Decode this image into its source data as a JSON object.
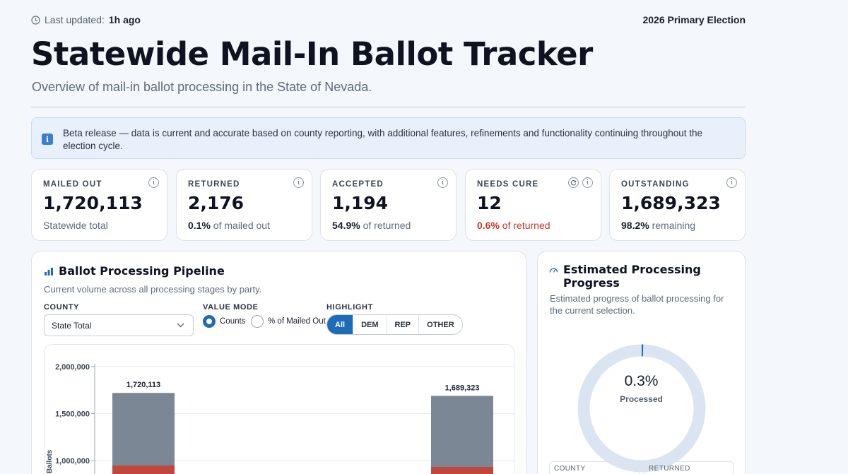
{
  "header": {
    "updated_label": "Last updated:",
    "updated_value": "1h ago",
    "election": "2026 Primary Election",
    "title": "Statewide Mail-In Ballot Tracker",
    "subtitle": "Overview of mail-in ballot processing in the State of Nevada."
  },
  "notice": {
    "icon": "info-icon",
    "text": "Beta release — data is current and accurate based on county reporting, with additional features, refinements and functionality continuing throughout the election cycle."
  },
  "stats": [
    {
      "label": "MAILED OUT",
      "value": "1,720,113",
      "sub_strong": "",
      "sub_text": "Statewide total"
    },
    {
      "label": "RETURNED",
      "value": "2,176",
      "sub_strong": "0.1%",
      "sub_text": " of mailed out"
    },
    {
      "label": "ACCEPTED",
      "value": "1,194",
      "sub_strong": "54.9%",
      "sub_text": " of returned"
    },
    {
      "label": "NEEDS CURE",
      "value": "12",
      "sub_strong": "0.6%",
      "sub_text": " of returned"
    },
    {
      "label": "OUTSTANDING",
      "value": "1,689,323",
      "sub_strong": "98.2%",
      "sub_text": " remaining"
    }
  ],
  "pipeline": {
    "title": "Ballot Processing Pipeline",
    "description": "Current volume across all processing stages by party.",
    "county_label": "COUNTY",
    "county_value": "State Total",
    "value_mode_label": "VALUE MODE",
    "mode_counts": "Counts",
    "mode_pct": "% of Mailed Out",
    "highlight_label": "HIGHLIGHT",
    "highlight_options": [
      "All",
      "DEM",
      "REP",
      "OTHER"
    ],
    "highlight_selected": "All"
  },
  "chart_data": {
    "type": "bar",
    "ylabel": "Ballots",
    "ylim": [
      500000,
      2000000
    ],
    "yticks": [
      "2,000,000",
      "1,500,000",
      "1,000,000"
    ],
    "bars": [
      {
        "value": 1720113,
        "label": "1,720,113"
      },
      {
        "value": 1689323,
        "label": "1,689,323"
      }
    ],
    "colors": {
      "gray": "#7b8794",
      "red": "#c0473c"
    }
  },
  "progress": {
    "title": "Estimated Processing Progress",
    "description": "Estimated progress of ballot processing for the current selection.",
    "percent_value": 0.3,
    "percent_label": "0.3%",
    "center_label": "Processed",
    "mini_labels": [
      "COUNTY",
      "RETURNED"
    ]
  }
}
